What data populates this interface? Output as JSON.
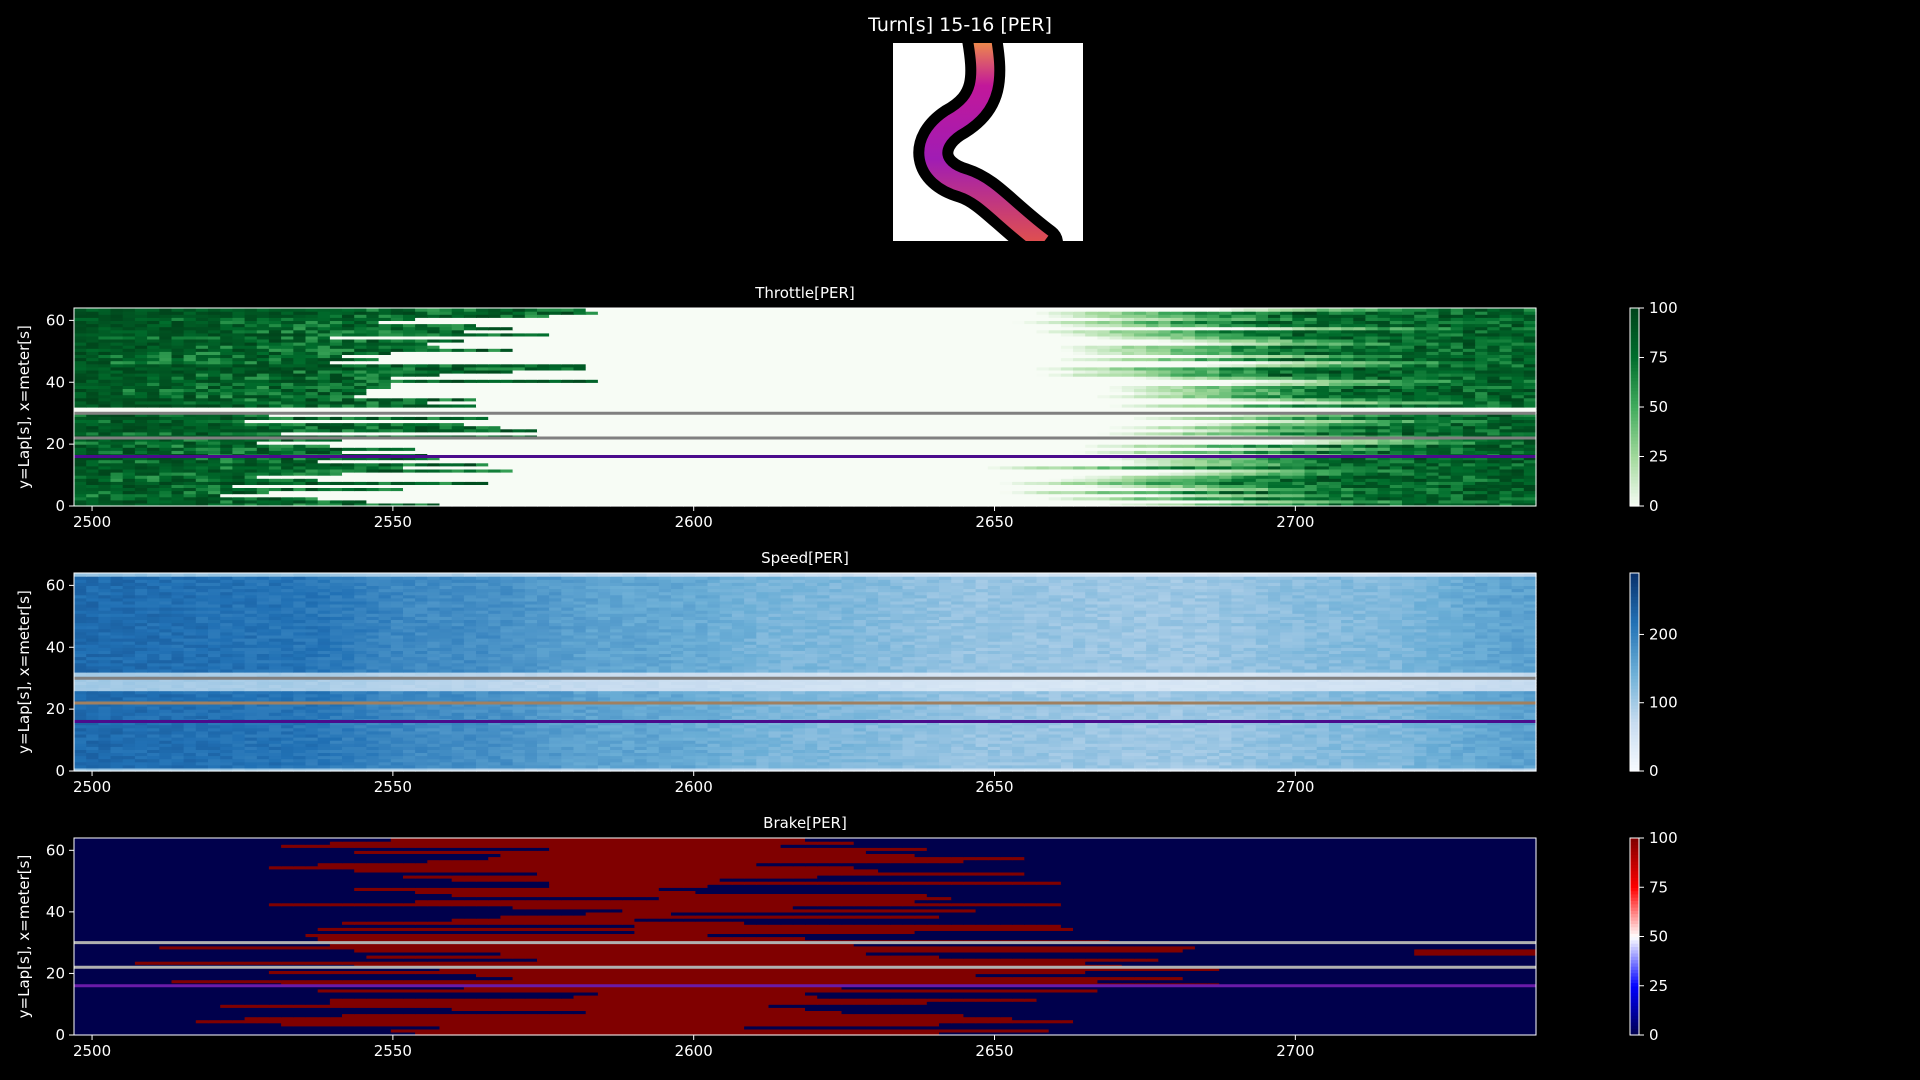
{
  "figure": {
    "title": "Turn[s] 15-16 [PER]"
  },
  "track_map": {
    "icon": "track-turn-map",
    "track_color": "#000000",
    "background": "#ffffff",
    "line_gradient": [
      "#f7a23a",
      "#c2189a",
      "#a01cb4",
      "#e0504e"
    ]
  },
  "chart_data": [
    {
      "type": "heatmap",
      "title": "Throttle[PER]",
      "xlabel": "",
      "ylabel": "y=Lap[s], x=meter[s]",
      "xlim": [
        2497,
        2740
      ],
      "ylim": [
        0,
        64
      ],
      "x_ticks": [
        2500,
        2550,
        2600,
        2650,
        2700
      ],
      "y_ticks": [
        0,
        20,
        40,
        60
      ],
      "colormap": "Greens",
      "colormap_colors": [
        "#f7fcf5",
        "#a1d99b",
        "#41ab5d",
        "#006d2c",
        "#00441b"
      ],
      "colorbar": {
        "min": 0,
        "max": 100,
        "ticks": [
          0,
          25,
          50,
          75,
          100
        ]
      },
      "reference_lines": [
        {
          "y": 16,
          "color": "#4b0c8c"
        },
        {
          "y": 22,
          "color": "#808080"
        },
        {
          "y": 30,
          "color": "#808080"
        }
      ],
      "bands": [
        {
          "laps": [
            0,
            14
          ],
          "high_end": 2545,
          "low_start": 2670
        },
        {
          "laps": [
            14,
            23
          ],
          "high_end": 2550,
          "low_start": 2685
        },
        {
          "laps": [
            23,
            31
          ],
          "high_end": 2550,
          "low_start": 2690
        },
        {
          "laps": [
            31,
            64
          ],
          "high_end": 2560,
          "low_start": 2675
        }
      ]
    },
    {
      "type": "heatmap",
      "title": "Speed[PER]",
      "xlabel": "",
      "ylabel": "y=Lap[s], x=meter[s]",
      "xlim": [
        2497,
        2740
      ],
      "ylim": [
        0,
        64
      ],
      "x_ticks": [
        2500,
        2550,
        2600,
        2650,
        2700
      ],
      "y_ticks": [
        0,
        20,
        40,
        60
      ],
      "colormap": "Blues",
      "colormap_colors": [
        "#f7fbff",
        "#c6dbef",
        "#6baed6",
        "#2171b5",
        "#08306b"
      ],
      "colorbar": {
        "min": 0,
        "max": 290,
        "ticks": [
          0,
          100,
          200
        ]
      },
      "speed_profile": [
        {
          "x": 2497,
          "v": 225
        },
        {
          "x": 2530,
          "v": 215
        },
        {
          "x": 2560,
          "v": 185
        },
        {
          "x": 2590,
          "v": 155
        },
        {
          "x": 2620,
          "v": 130
        },
        {
          "x": 2650,
          "v": 110
        },
        {
          "x": 2680,
          "v": 105
        },
        {
          "x": 2710,
          "v": 125
        },
        {
          "x": 2740,
          "v": 160
        }
      ],
      "reference_lines": [
        {
          "y": 16,
          "color": "#4b0c8c"
        },
        {
          "y": 22,
          "color": "#a08060"
        },
        {
          "y": 30,
          "color": "#808080"
        }
      ]
    },
    {
      "type": "heatmap",
      "title": "Brake[PER]",
      "xlabel": "",
      "ylabel": "y=Lap[s], x=meter[s]",
      "xlim": [
        2497,
        2740
      ],
      "ylim": [
        0,
        64
      ],
      "x_ticks": [
        2500,
        2550,
        2600,
        2650,
        2700
      ],
      "y_ticks": [
        0,
        20,
        40,
        60
      ],
      "colormap": "seismic",
      "colormap_colors": [
        "#00004c",
        "#0000ff",
        "#ffffff",
        "#ff0000",
        "#800000"
      ],
      "colorbar": {
        "min": 0,
        "max": 100,
        "ticks": [
          0,
          25,
          50,
          75,
          100
        ]
      },
      "reference_lines": [
        {
          "y": 16,
          "color": "#6a1ba8"
        },
        {
          "y": 22,
          "color": "#b0b0b0"
        },
        {
          "y": 30,
          "color": "#b0b0b0"
        }
      ],
      "brake_zones": [
        {
          "laps": [
            0,
            14
          ],
          "start": 2550,
          "end": 2640
        },
        {
          "laps": [
            14,
            31
          ],
          "start": 2540,
          "end": 2650
        },
        {
          "laps": [
            31,
            64
          ],
          "start": 2560,
          "end": 2625
        }
      ]
    }
  ]
}
